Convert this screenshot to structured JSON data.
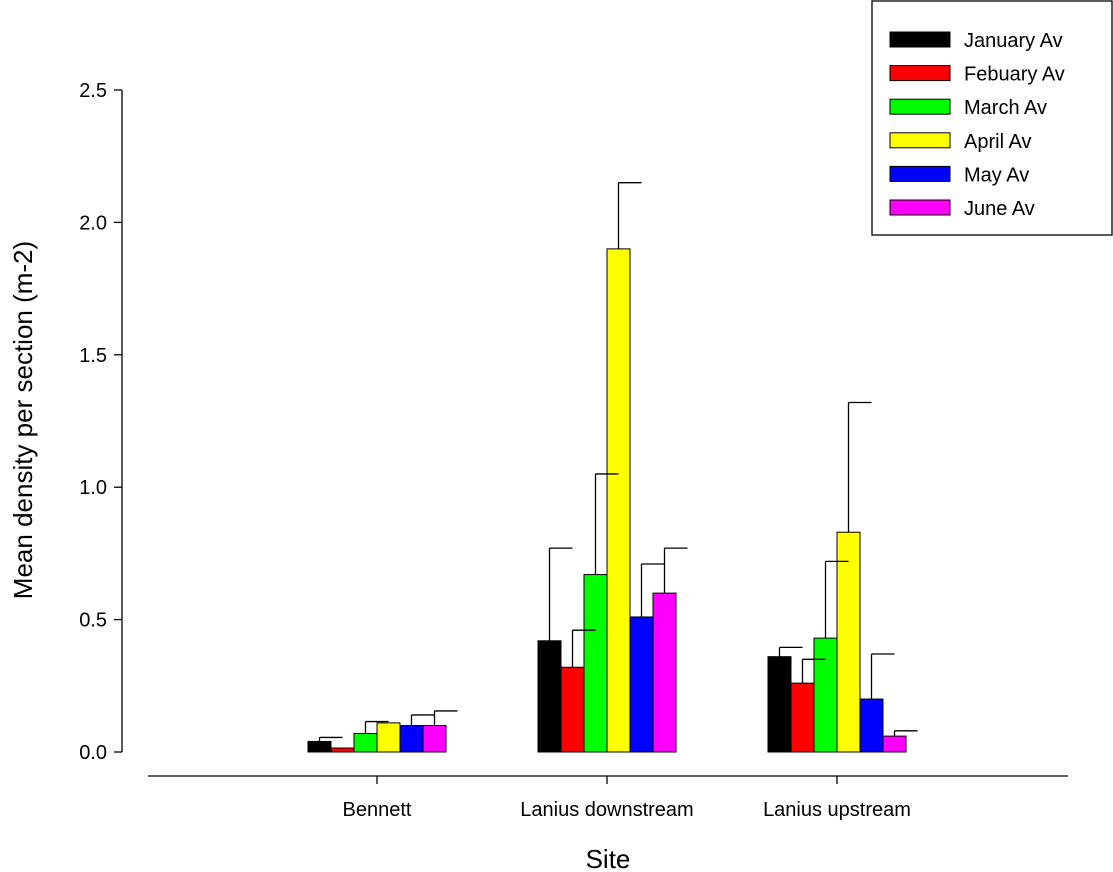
{
  "chart_data": {
    "type": "bar",
    "title": "",
    "xlabel": "Site",
    "ylabel": "Mean density per section (m-2)",
    "ylim": [
      0,
      2.5
    ],
    "yticks": [
      "0.0",
      "0.5",
      "1.0",
      "1.5",
      "2.0",
      "2.5"
    ],
    "grid": false,
    "legend_position": "top-right",
    "categories": [
      "Bennett",
      "Lanius downstream",
      "Lanius upstream"
    ],
    "series": [
      {
        "name": "January Av",
        "color": "#000000",
        "values": [
          0.04,
          0.42,
          0.36
        ],
        "error": [
          0.015,
          0.35,
          0.035
        ]
      },
      {
        "name": "Febuary Av",
        "color": "#ff0000",
        "values": [
          0.015,
          0.32,
          0.26
        ],
        "error": [
          0.0,
          0.14,
          0.09
        ]
      },
      {
        "name": "March Av",
        "color": "#00ff00",
        "values": [
          0.07,
          0.67,
          0.43
        ],
        "error": [
          0.045,
          0.38,
          0.29
        ]
      },
      {
        "name": "April Av",
        "color": "#ffff00",
        "values": [
          0.11,
          1.9,
          0.83
        ],
        "error": [
          0.0,
          0.25,
          0.49
        ]
      },
      {
        "name": "May Av",
        "color": "#0000ff",
        "values": [
          0.1,
          0.51,
          0.2
        ],
        "error": [
          0.04,
          0.2,
          0.17
        ]
      },
      {
        "name": "June Av",
        "color": "#ff00ff",
        "values": [
          0.1,
          0.6,
          0.06
        ],
        "error": [
          0.055,
          0.17,
          0.02
        ]
      }
    ]
  }
}
